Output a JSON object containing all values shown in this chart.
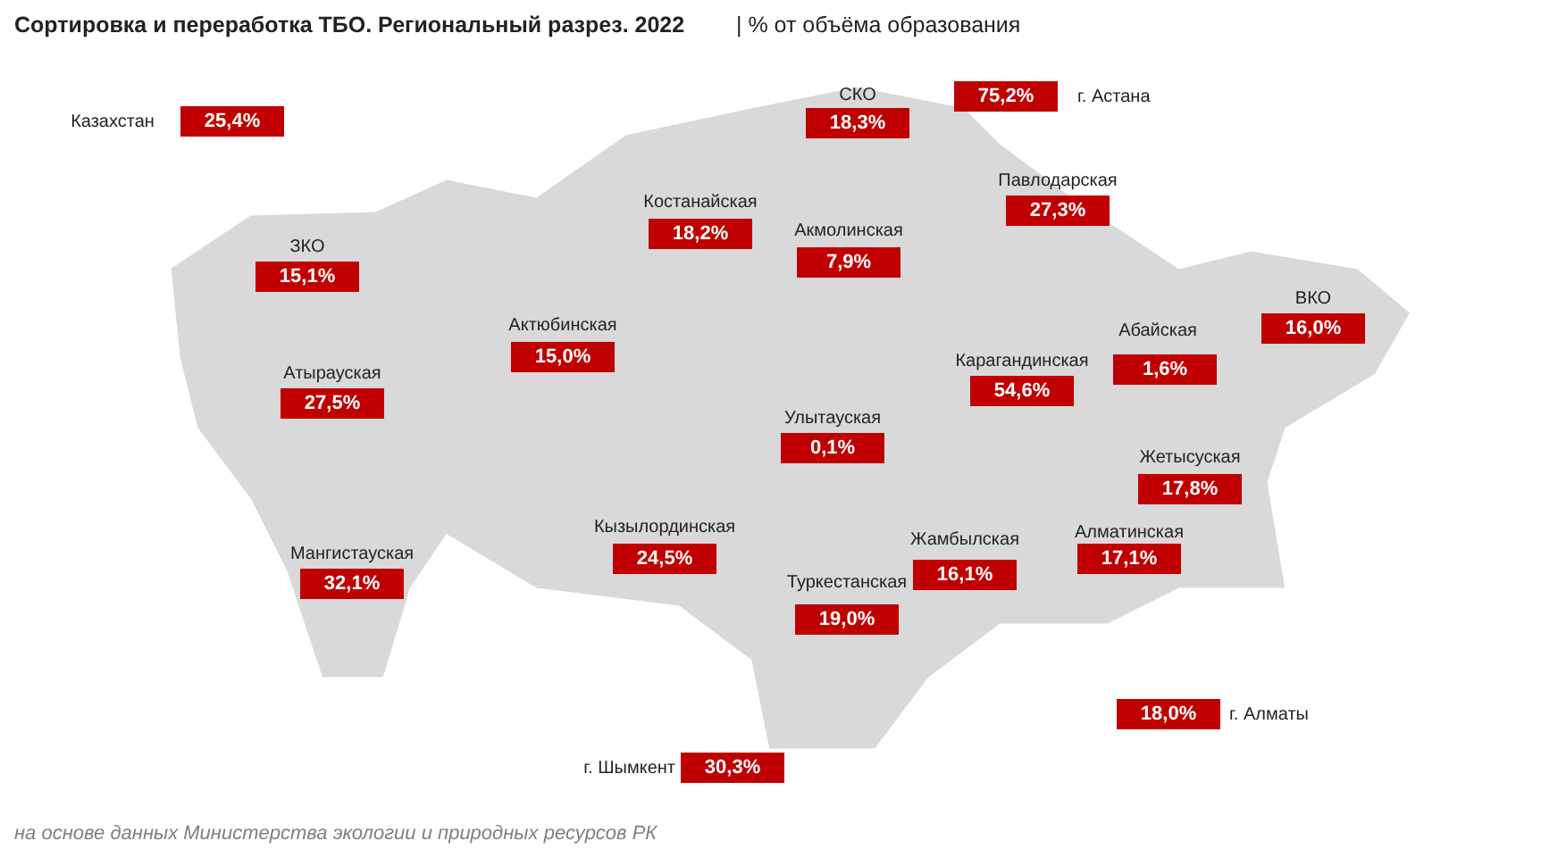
{
  "chart_data": {
    "type": "other",
    "title": "Сортировка и переработка ТБО. Региональный разрез. 2022",
    "subtitle": "| % от объёма образования",
    "annotations": [
      "на основе данных Министерства экологии и природных ресурсов РК"
    ],
    "categories": [
      "Казахстан",
      "СКО",
      "г. Астана",
      "Костанайская",
      "Павлодарская",
      "ЗКО",
      "Акмолинская",
      "ВКО",
      "Актюбинская",
      "Абайская",
      "Карагандинская",
      "Атырауская",
      "Улытауская",
      "Жетысуская",
      "Мангистауская",
      "Кызылординская",
      "Жамбылская",
      "Алматинская",
      "Туркестанская",
      "г. Алматы",
      "г. Шымкент"
    ],
    "values": [
      25.4,
      18.3,
      75.2,
      18.2,
      27.3,
      15.1,
      7.9,
      16.0,
      15.0,
      1.6,
      54.6,
      27.5,
      0.1,
      17.8,
      32.1,
      24.5,
      16.1,
      17.1,
      19.0,
      18.0,
      30.3
    ],
    "value_labels": [
      "25,4%",
      "18,3%",
      "75,2%",
      "18,2%",
      "27,3%",
      "15,1%",
      "7,9%",
      "16,0%",
      "15,0%",
      "1,6%",
      "54,6%",
      "27,5%",
      "0,1%",
      "17,8%",
      "32,1%",
      "24,5%",
      "16,1%",
      "17,1%",
      "19,0%",
      "18,0%",
      "30,3%"
    ],
    "color": "#c00000"
  }
}
